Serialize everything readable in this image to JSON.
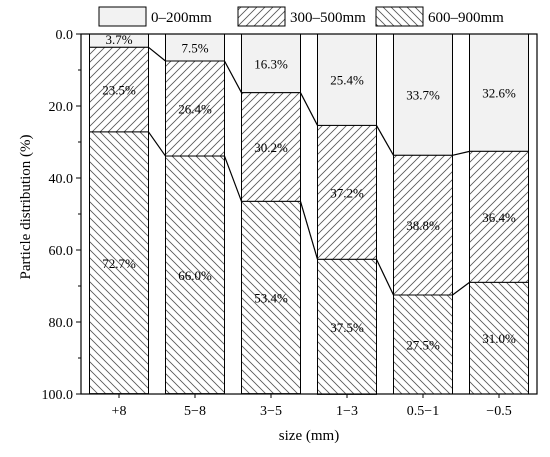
{
  "chart_data": {
    "type": "bar",
    "stacked": true,
    "orientation": "vertical",
    "y_axis_inverted": true,
    "title": "",
    "xlabel": "size (mm)",
    "ylabel": "Particle distribution (%)",
    "ylim": [
      0,
      100
    ],
    "yticks": [
      0,
      20,
      40,
      60,
      80,
      100
    ],
    "ytick_labels": [
      "0.0",
      "20.0",
      "40.0",
      "60.0",
      "80.0",
      "100.0"
    ],
    "categories": [
      "+8",
      "5−8",
      "3−5",
      "1−3",
      "0.5−1",
      "−0.5"
    ],
    "series": [
      {
        "name": "0–200mm",
        "values": [
          3.7,
          7.5,
          16.3,
          25.4,
          33.7,
          32.6
        ],
        "labels": [
          "3.7%",
          "7.5%",
          "16.3%",
          "25.4%",
          "33.7%",
          "32.6%"
        ],
        "pattern": "none",
        "color": "#f2f2f2"
      },
      {
        "name": "300–500mm",
        "values": [
          23.5,
          26.4,
          30.2,
          37.2,
          38.8,
          36.4
        ],
        "labels": [
          "23.5%",
          "26.4%",
          "30.2%",
          "37.2%",
          "38.8%",
          "36.4%"
        ],
        "pattern": "forward-hatch",
        "color": "#ffffff"
      },
      {
        "name": "600–900mm",
        "values": [
          72.7,
          66.0,
          53.4,
          37.5,
          27.5,
          31.0
        ],
        "labels": [
          "72.7%",
          "66.0%",
          "53.4%",
          "37.5%",
          "27.5%",
          "31.0%"
        ],
        "pattern": "back-hatch",
        "color": "#ffffff"
      }
    ],
    "connector_lines": true,
    "grid": false,
    "legend": {
      "position": "top"
    }
  }
}
